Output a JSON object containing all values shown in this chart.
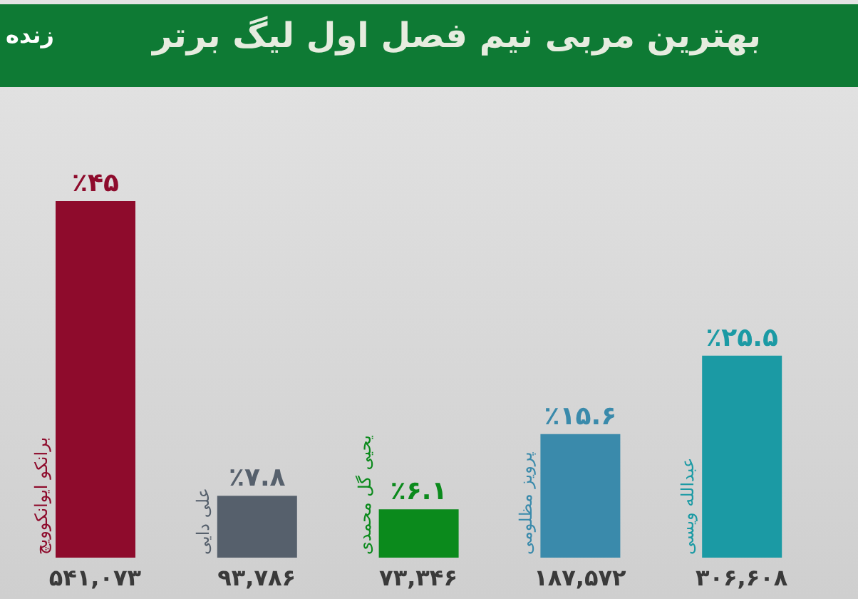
{
  "chart_data": {
    "type": "bar",
    "title": "بهترین مربی نیم فصل اول لیگ برتر",
    "categories": [
      "برانکو ایوانکوویچ",
      "علی دایی",
      "یحیی گل محمدی",
      "پرویز مظلومی",
      "عبدالله ویسی"
    ],
    "values": [
      45,
      7.8,
      6.1,
      15.6,
      25.5
    ],
    "colors": [
      "#8e0b2c",
      "#56606c",
      "#0b8a1c",
      "#3a8aab",
      "#1b9aa4"
    ],
    "value_labels": [
      "٪۴۵",
      "٪۷.۸",
      "٪۶.۱",
      "٪۱۵.۶",
      "٪۲۵.۵"
    ],
    "annotations": [
      "زنده",
      "۵۴۱,۰۷۳",
      "۹۳,۷۸۶",
      "۷۳,۳۴۶",
      "۱۸۷,۵۷۲",
      "۳۰۶,۶۰۸"
    ],
    "legend": false,
    "grid": false
  }
}
